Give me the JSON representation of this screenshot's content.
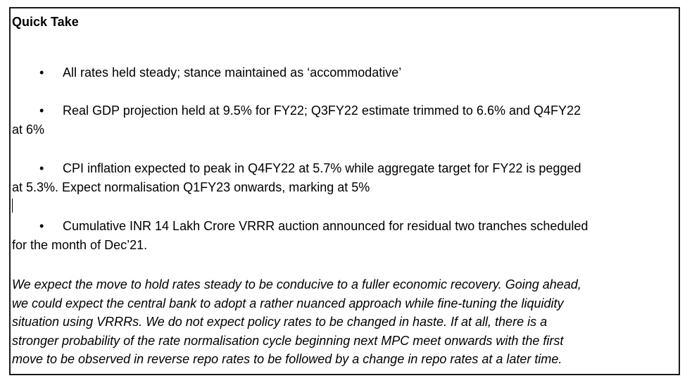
{
  "document": {
    "title": "Quick Take",
    "bullet_symbol": "•",
    "bullets": [
      {
        "line1": "All rates held steady; stance maintained as ‘accommodative’",
        "line2": ""
      },
      {
        "line1": "Real GDP projection held at 9.5% for FY22; Q3FY22 estimate trimmed to 6.6% and Q4FY22",
        "line2": "at 6%"
      },
      {
        "line1": "CPI inflation expected to peak in Q4FY22 at 5.7% while aggregate target for FY22 is pegged",
        "line2": "at 5.3%. Expect normalisation Q1FY23 onwards, marking at 5%"
      },
      {
        "line1": "Cumulative INR 14 Lakh Crore VRRR auction announced for residual two tranches scheduled",
        "line2": "for the month of Dec’21."
      }
    ],
    "paragraph_lines": [
      "We expect the move to hold rates steady to be conducive to a fuller economic recovery. Going ahead,",
      "we could expect the central bank to adopt a rather nuanced approach while fine-tuning the liquidity",
      "situation using VRRRs. We do not expect policy rates to be changed in haste. If at all, there is a",
      "stronger probability of the rate normalisation cycle beginning next MPC meet onwards with the first",
      "move to be observed in reverse repo rates to be followed by a change in repo rates at a later time."
    ]
  }
}
